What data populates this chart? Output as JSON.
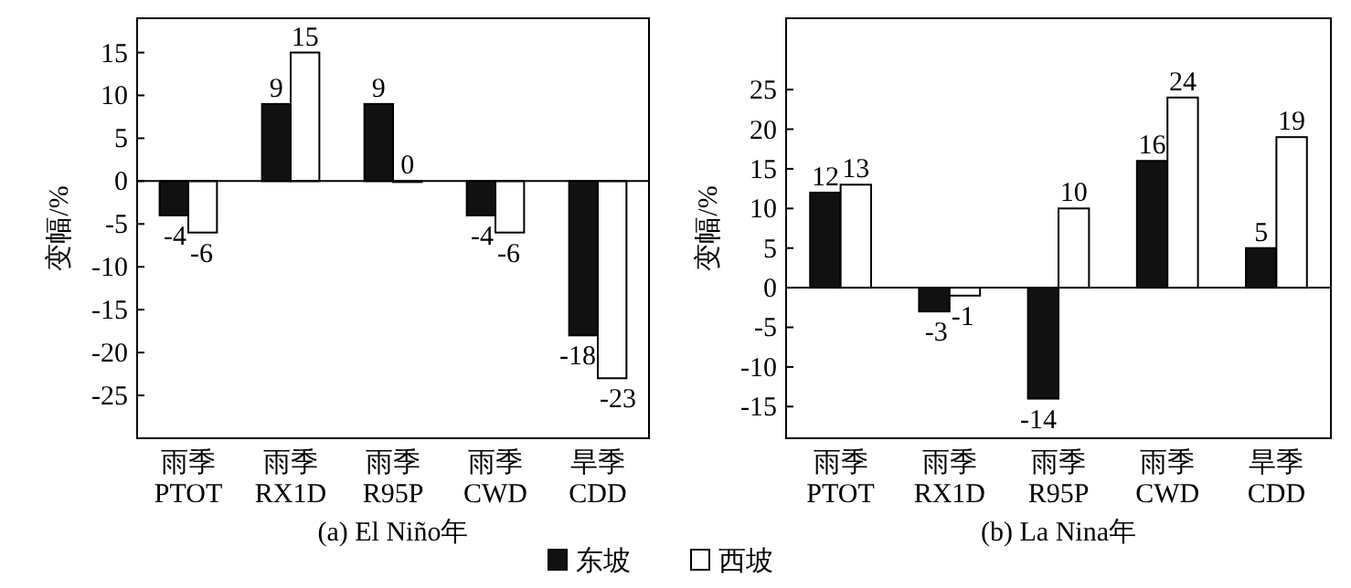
{
  "chart_data": [
    {
      "type": "bar",
      "xlabel": "(a) El Niño年",
      "ylabel": "变幅/%",
      "categories": [
        "雨季\nPTOT",
        "雨季\nRX1D",
        "雨季\nR95P",
        "雨季\nCWD",
        "旱季\nCDD"
      ],
      "series": [
        {
          "name": "东坡",
          "color": "#111111",
          "values": [
            -4,
            9,
            9,
            -4,
            -18
          ]
        },
        {
          "name": "西坡",
          "color": "#ffffff",
          "values": [
            -6,
            15,
            0,
            -6,
            -23
          ]
        }
      ],
      "ylim": [
        -30,
        19
      ],
      "yticks": [
        -25,
        -20,
        -15,
        -10,
        -5,
        0,
        5,
        10,
        15
      ],
      "data_labels": true,
      "legend": "bottom"
    },
    {
      "type": "bar",
      "xlabel": "(b) La Nina年",
      "ylabel": "变幅/%",
      "categories": [
        "雨季\nPTOT",
        "雨季\nRX1D",
        "雨季\nR95P",
        "雨季\nCWD",
        "旱季\nCDD"
      ],
      "series": [
        {
          "color": "#111111",
          "values": [
            12,
            -3,
            -14,
            16,
            5
          ]
        },
        {
          "color": "#ffffff",
          "values": [
            13,
            -1,
            10,
            24,
            19
          ]
        }
      ],
      "ylim": [
        -19,
        34
      ],
      "yticks": [
        -15,
        -10,
        -5,
        0,
        5,
        10,
        15,
        20,
        25
      ],
      "data_labels": true
    }
  ]
}
